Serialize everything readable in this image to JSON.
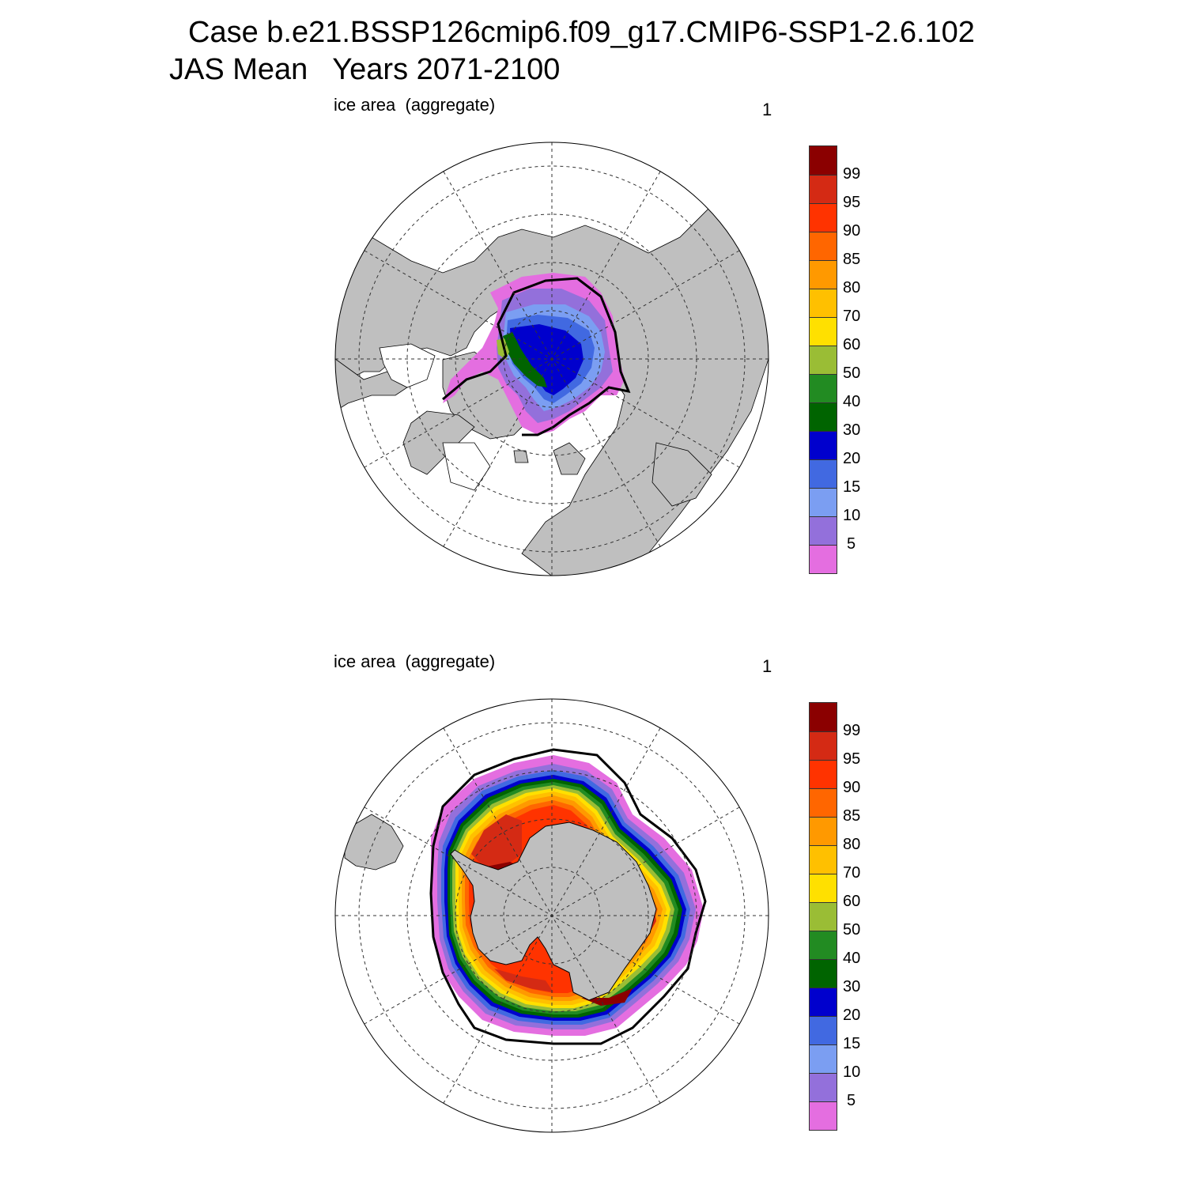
{
  "title": {
    "line1": "Case b.e21.BSSP126cmip6.f09_g17.CMIP6-SSP1-2.6.102",
    "line2": "JAS Mean   Years 2071-2100"
  },
  "panels": [
    {
      "hemisphere": "north",
      "label": "ice area  (aggregate)",
      "number": "1"
    },
    {
      "hemisphere": "south",
      "label": "ice area  (aggregate)",
      "number": "1"
    }
  ],
  "colorbar": {
    "levels": [
      "99",
      "95",
      "90",
      "85",
      "80",
      "70",
      "60",
      "50",
      "40",
      "30",
      "20",
      "15",
      "10",
      "5"
    ],
    "colors": [
      "#8b0000",
      "#d42a14",
      "#ff3300",
      "#ff6600",
      "#ff9900",
      "#ffc000",
      "#ffe000",
      "#9abd35",
      "#228b22",
      "#006400",
      "#0000cd",
      "#4169e1",
      "#7b9ef2",
      "#9370db",
      "#e46ee0"
    ]
  },
  "map_colors": {
    "land": "#bfbfbf",
    "ocean": "#ffffff",
    "grid": "#333333"
  }
}
